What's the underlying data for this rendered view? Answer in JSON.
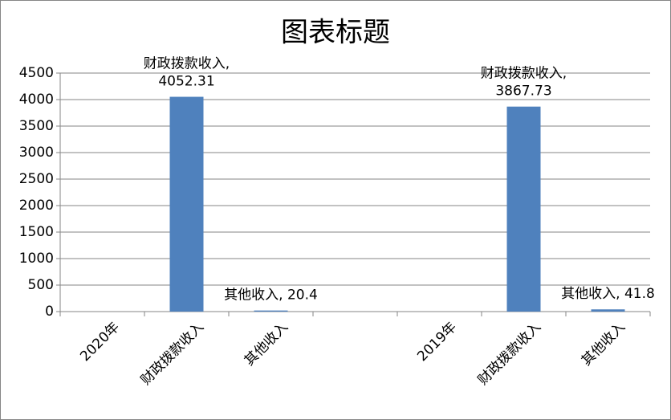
{
  "chart_data": {
    "type": "bar",
    "title": "图表标题",
    "categories": [
      "2020年",
      "财政拨款收入",
      "其他收入",
      null,
      "2019年",
      "财政拨款收入",
      "其他收入"
    ],
    "values": [
      null,
      4052.31,
      20.4,
      null,
      null,
      3867.73,
      41.8
    ],
    "value_labels": [
      null,
      "财政拨款收入,\n4052.31",
      "其他收入, 20.4",
      null,
      null,
      "财政拨款收入,\n3867.73",
      "其他收入, 41.8"
    ],
    "color": "#4f81bd",
    "ylim": [
      0,
      4500
    ],
    "yticks": [
      0,
      500,
      1000,
      1500,
      2000,
      2500,
      3000,
      3500,
      4000,
      4500
    ],
    "grid": true
  }
}
